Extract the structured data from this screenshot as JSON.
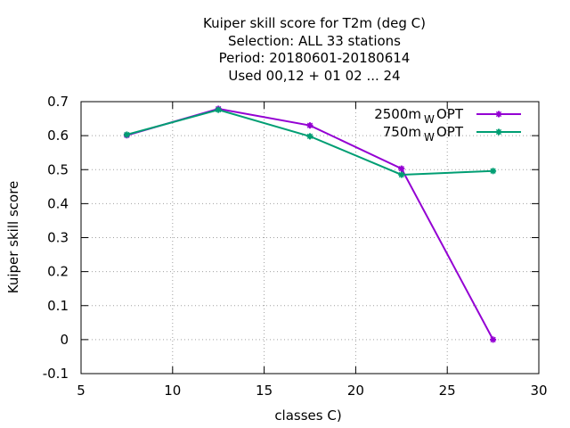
{
  "chart_data": {
    "type": "line",
    "title_lines": [
      "Kuiper skill score  for T2m (deg C)",
      "Selection: ALL     33 stations",
      "Period: 20180601-20180614",
      "Used  00,12  + 01 02 ... 24"
    ],
    "xlabel": "classes C)",
    "ylabel": "Kuiper skill score",
    "xlim": [
      5,
      30
    ],
    "ylim": [
      -0.1,
      0.7
    ],
    "xticks": [
      5,
      10,
      15,
      20,
      25,
      30
    ],
    "xtick_labels": [
      "5",
      "10",
      "15",
      "20",
      "25",
      "30"
    ],
    "yticks": [
      -0.1,
      0,
      0.1,
      0.2,
      0.3,
      0.4,
      0.5,
      0.6,
      0.7
    ],
    "ytick_labels": [
      "-0.1",
      "0",
      "0.1",
      "0.2",
      "0.3",
      "0.4",
      "0.5",
      "0.6",
      "0.7"
    ],
    "grid": true,
    "legend_position": "top-right",
    "series": [
      {
        "name": "2500m",
        "name_sub": "W",
        "name_suffix": "OPT",
        "color": "#9400d3",
        "x": [
          7.5,
          12.5,
          17.5,
          22.5,
          27.5
        ],
        "y": [
          0.601,
          0.679,
          0.63,
          0.503,
          0.0
        ]
      },
      {
        "name": "750m",
        "name_sub": "W",
        "name_suffix": "OPT",
        "color": "#009e73",
        "x": [
          7.5,
          12.5,
          17.5,
          22.5,
          27.5
        ],
        "y": [
          0.603,
          0.676,
          0.598,
          0.485,
          0.496
        ]
      }
    ]
  }
}
